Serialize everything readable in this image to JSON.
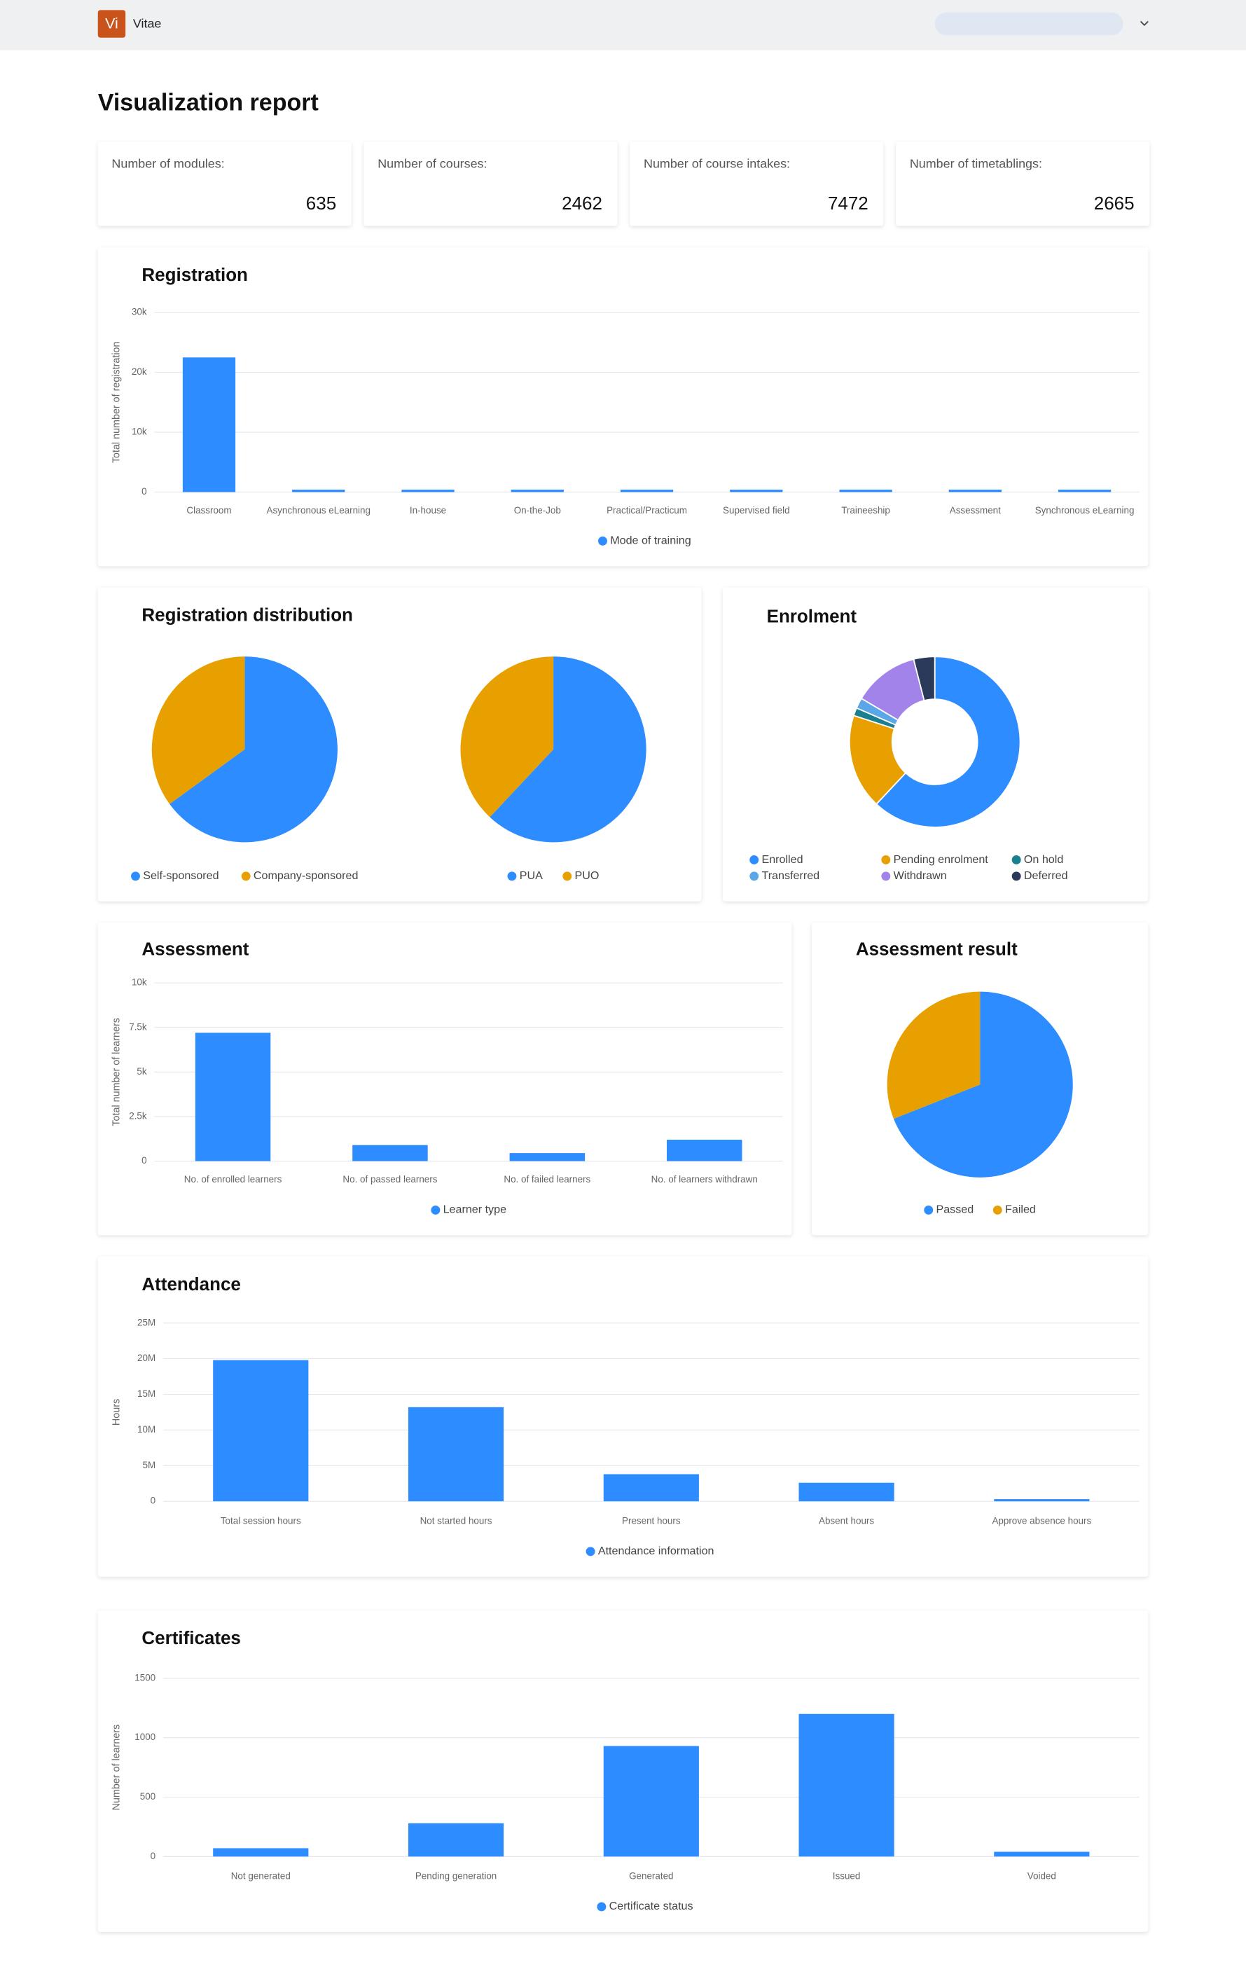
{
  "header": {
    "logo": "Vi",
    "app_name": "Vitae"
  },
  "page_title": "Visualization report",
  "stats": [
    {
      "label": "Number of modules:",
      "value": 635
    },
    {
      "label": "Number of courses:",
      "value": 2462
    },
    {
      "label": "Number of course intakes:",
      "value": 7472
    },
    {
      "label": "Number of timetablings:",
      "value": 2665
    }
  ],
  "chart_data": [
    {
      "type": "bar",
      "title": "Registration",
      "y_label": "Total number of registration",
      "categories": [
        "Classroom",
        "Asynchronous eLearning",
        "In-house",
        "On-the-Job",
        "Practical/Practicum",
        "Supervised field",
        "Traineeship",
        "Assessment",
        "Synchronous eLearning"
      ],
      "series": [
        {
          "name": "Mode of training",
          "color": "#2d8cff",
          "values": [
            22500,
            400,
            400,
            400,
            400,
            400,
            400,
            400,
            400
          ]
        }
      ],
      "ylim": [
        0,
        30000
      ],
      "yticks": [
        0,
        {
          "value": 10000,
          "label": "10k"
        },
        {
          "value": 20000,
          "label": "20k"
        },
        {
          "value": 30000,
          "label": "30k"
        }
      ],
      "grid": true
    },
    {
      "type": "pie",
      "title": "Registration distribution",
      "categories": [
        "Self-sponsored",
        "Company-sponsored"
      ],
      "values": [
        65,
        35
      ],
      "colors": [
        "#2d8cff",
        "#e8a000"
      ]
    },
    {
      "type": "pie",
      "categories": [
        "PUA",
        "PUO"
      ],
      "values": [
        62,
        38
      ],
      "colors": [
        "#2d8cff",
        "#e8a000"
      ]
    },
    {
      "type": "donut",
      "title": "Enrolment",
      "categories": [
        "Enrolled",
        "Pending enrolment",
        "On hold",
        "Transferred",
        "Withdrawn",
        "Deferred"
      ],
      "values": [
        62,
        18,
        1.5,
        2,
        12.5,
        4
      ],
      "colors": [
        "#2d8cff",
        "#e8a000",
        "#1a7f8e",
        "#5aa6e6",
        "#a283ea",
        "#2b3a5a"
      ]
    },
    {
      "type": "bar",
      "title": "Assessment",
      "y_label": "Total number of learners",
      "categories": [
        "No. of enrolled learners",
        "No. of passed learners",
        "No. of failed learners",
        "No. of learners withdrawn"
      ],
      "series": [
        {
          "name": "Learner type",
          "color": "#2d8cff",
          "values": [
            7200,
            900,
            450,
            1200
          ]
        }
      ],
      "ylim": [
        0,
        10000
      ],
      "yticks": [
        0,
        {
          "value": 2500,
          "label": "2.5k"
        },
        {
          "value": 5000,
          "label": "5k"
        },
        {
          "value": 7500,
          "label": "7.5k"
        },
        {
          "value": 10000,
          "label": "10k"
        }
      ],
      "grid": true
    },
    {
      "type": "pie",
      "title": "Assessment result",
      "categories": [
        "Passed",
        "Failed"
      ],
      "values": [
        69,
        31
      ],
      "colors": [
        "#2d8cff",
        "#e8a000"
      ]
    },
    {
      "type": "bar",
      "title": "Attendance",
      "y_label": "Hours",
      "categories": [
        "Total session hours",
        "Not started hours",
        "Present hours",
        "Absent hours",
        "Approve absence hours"
      ],
      "series": [
        {
          "name": "Attendance information",
          "color": "#2d8cff",
          "values": [
            19800000,
            13200000,
            3800000,
            2600000,
            300000
          ]
        }
      ],
      "ylim": [
        0,
        25000000
      ],
      "yticks": [
        0,
        {
          "value": 5000000,
          "label": "5M"
        },
        {
          "value": 10000000,
          "label": "10M"
        },
        {
          "value": 15000000,
          "label": "15M"
        },
        {
          "value": 20000000,
          "label": "20M"
        },
        {
          "value": 25000000,
          "label": "25M"
        }
      ],
      "grid": true
    },
    {
      "type": "bar",
      "title": "Certificates",
      "y_label": "Number of learners",
      "categories": [
        "Not generated",
        "Pending generation",
        "Generated",
        "Issued",
        "Voided"
      ],
      "series": [
        {
          "name": "Certificate status",
          "color": "#2d8cff",
          "values": [
            70,
            280,
            930,
            1200,
            40
          ]
        }
      ],
      "ylim": [
        0,
        1500
      ],
      "yticks": [
        0,
        500,
        1000,
        1500
      ],
      "grid": true
    }
  ]
}
